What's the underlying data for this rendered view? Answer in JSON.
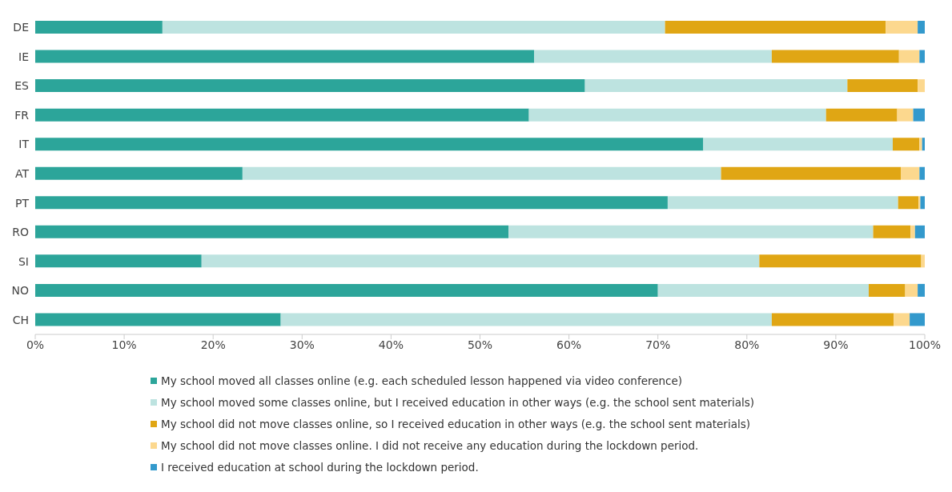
{
  "chart_data": {
    "type": "bar",
    "orientation": "horizontal",
    "stacked": true,
    "legend": "bottom",
    "grid": false,
    "categories": [
      "DE",
      "IE",
      "ES",
      "FR",
      "IT",
      "AT",
      "PT",
      "RO",
      "SI",
      "NO",
      "CH"
    ],
    "xlim": [
      0,
      100
    ],
    "xticks": [
      {
        "value": 0,
        "label": "0%"
      },
      {
        "value": 10,
        "label": "10%"
      },
      {
        "value": 20,
        "label": "20%"
      },
      {
        "value": 30,
        "label": "30%"
      },
      {
        "value": 40,
        "label": "40%"
      },
      {
        "value": 50,
        "label": "50%"
      },
      {
        "value": 60,
        "label": "60%"
      },
      {
        "value": 70,
        "label": "70%"
      },
      {
        "value": 80,
        "label": "80%"
      },
      {
        "value": 90,
        "label": "90%"
      },
      {
        "value": 100,
        "label": "100%"
      }
    ],
    "series": [
      {
        "name": "My school moved all classes online (e.g. each scheduled lesson happened via video conference)",
        "color": "#2ca59a",
        "values": [
          14.3,
          56.1,
          61.8,
          55.5,
          75.1,
          23.3,
          71.1,
          53.2,
          18.7,
          70.0,
          27.6
        ]
      },
      {
        "name": "My school moved some classes online, but I received education in other ways (e.g. the school sent materials)",
        "color": "#bde3e0",
        "values": [
          56.5,
          26.7,
          29.5,
          33.4,
          21.3,
          53.8,
          25.9,
          41.0,
          62.7,
          23.7,
          55.2
        ]
      },
      {
        "name": "My school did not move classes online, so I received education in other ways (e.g. the school sent materials)",
        "color": "#e0a614",
        "values": [
          24.8,
          14.3,
          7.9,
          8.0,
          3.0,
          20.2,
          2.3,
          4.2,
          18.2,
          4.1,
          13.7
        ]
      },
      {
        "name": "My school did not move classes online. I did not receive any education during the lockdown period.",
        "color": "#fcd88e",
        "values": [
          3.6,
          2.3,
          0.8,
          1.8,
          0.3,
          2.1,
          0.2,
          0.5,
          0.4,
          1.4,
          1.8
        ]
      },
      {
        "name": "I received education at school during the lockdown period.",
        "color": "#3399cc",
        "values": [
          0.8,
          0.6,
          0,
          1.3,
          0.3,
          0.6,
          0.5,
          1.1,
          0,
          0.8,
          1.7
        ]
      }
    ]
  }
}
